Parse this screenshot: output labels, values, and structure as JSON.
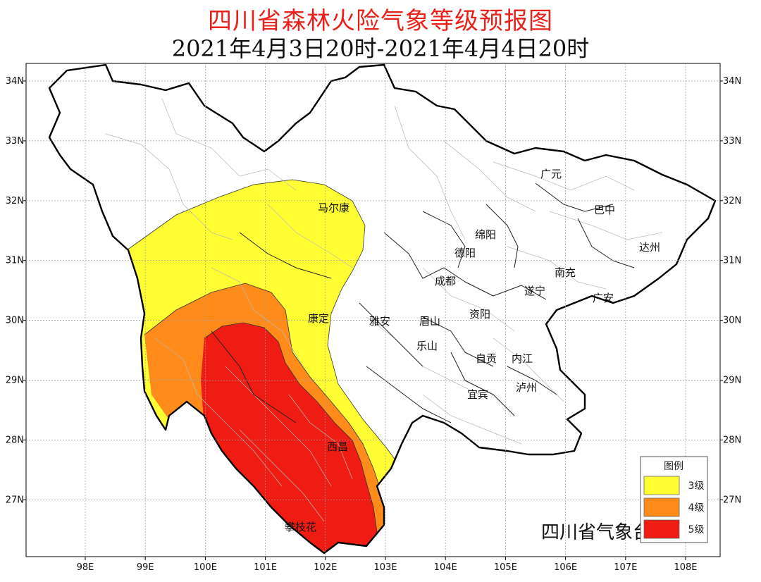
{
  "title": "四川省森林火险气象等级预报图",
  "subtitle": "2021年4月3日20时-2021年4月4日20时",
  "credit": "四川省气象台制作",
  "lon_ticks": [
    "98E",
    "99E",
    "100E",
    "101E",
    "102E",
    "103E",
    "104E",
    "105E",
    "106E",
    "107E",
    "108E"
  ],
  "lat_ticks": [
    "34N",
    "33N",
    "32N",
    "31N",
    "30N",
    "29N",
    "28N",
    "27N"
  ],
  "legend": {
    "title": "图例",
    "items": [
      {
        "label": "3级",
        "color": "#ffff33"
      },
      {
        "label": "4级",
        "color": "#ff8c1a"
      },
      {
        "label": "5级",
        "color": "#ee1c13"
      }
    ]
  },
  "cities": [
    {
      "key": "guangyuan",
      "name": "广元"
    },
    {
      "key": "bazhong",
      "name": "巴中"
    },
    {
      "key": "maerkang",
      "name": "马尔康"
    },
    {
      "key": "mianyang",
      "name": "绵阳"
    },
    {
      "key": "dazhou",
      "name": "达州"
    },
    {
      "key": "deyang",
      "name": "德阳"
    },
    {
      "key": "nanchong",
      "name": "南充"
    },
    {
      "key": "chengdu",
      "name": "成都"
    },
    {
      "key": "suining",
      "name": "遂宁"
    },
    {
      "key": "guangan",
      "name": "广安"
    },
    {
      "key": "kangding",
      "name": "康定"
    },
    {
      "key": "yaan",
      "name": "雅安"
    },
    {
      "key": "meishan",
      "name": "眉山"
    },
    {
      "key": "ziyang",
      "name": "资阳"
    },
    {
      "key": "leshan",
      "name": "乐山"
    },
    {
      "key": "zigong",
      "name": "自贡"
    },
    {
      "key": "neijiang",
      "name": "内江"
    },
    {
      "key": "yibin",
      "name": "宜宾"
    },
    {
      "key": "luzhou",
      "name": "泸州"
    },
    {
      "key": "xichang",
      "name": "西昌"
    },
    {
      "key": "panzhihua",
      "name": "攀枝花"
    }
  ]
}
